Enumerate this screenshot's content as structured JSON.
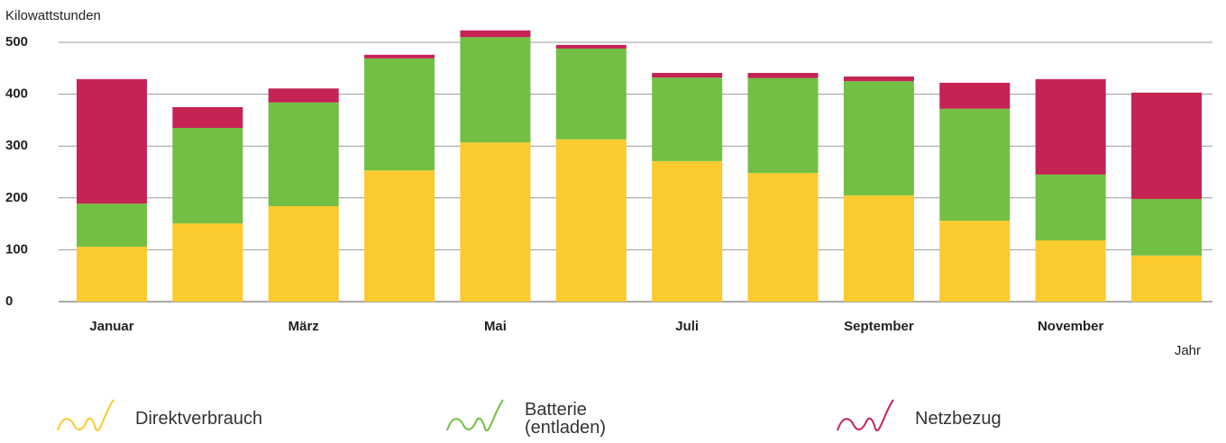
{
  "chart_data": {
    "type": "stacked_bar",
    "y_label": "Kilowattstunden",
    "x_label": "Jahr",
    "categories": [
      "Januar",
      null,
      "März",
      null,
      "Mai",
      null,
      "Juli",
      null,
      "September",
      null,
      "November",
      null
    ],
    "series": [
      {
        "name": "Direktverbrauch",
        "color": "#fbca2e",
        "values": [
          106,
          151,
          184,
          253,
          307,
          313,
          271,
          248,
          205,
          156,
          118,
          89
        ]
      },
      {
        "name": "Batterie (entladen)",
        "color": "#72bf44",
        "values": [
          83,
          184,
          200,
          216,
          203,
          175,
          161,
          183,
          220,
          216,
          127,
          109
        ]
      },
      {
        "name": "Netzbezug",
        "color": "#c42353",
        "values": [
          240,
          40,
          27,
          7,
          13,
          7,
          9,
          10,
          9,
          50,
          184,
          205
        ]
      }
    ],
    "ylim": [
      0,
      500
    ],
    "yticks": [
      0,
      100,
      200,
      300,
      400,
      500
    ],
    "grid": true,
    "legend": "bottom"
  }
}
